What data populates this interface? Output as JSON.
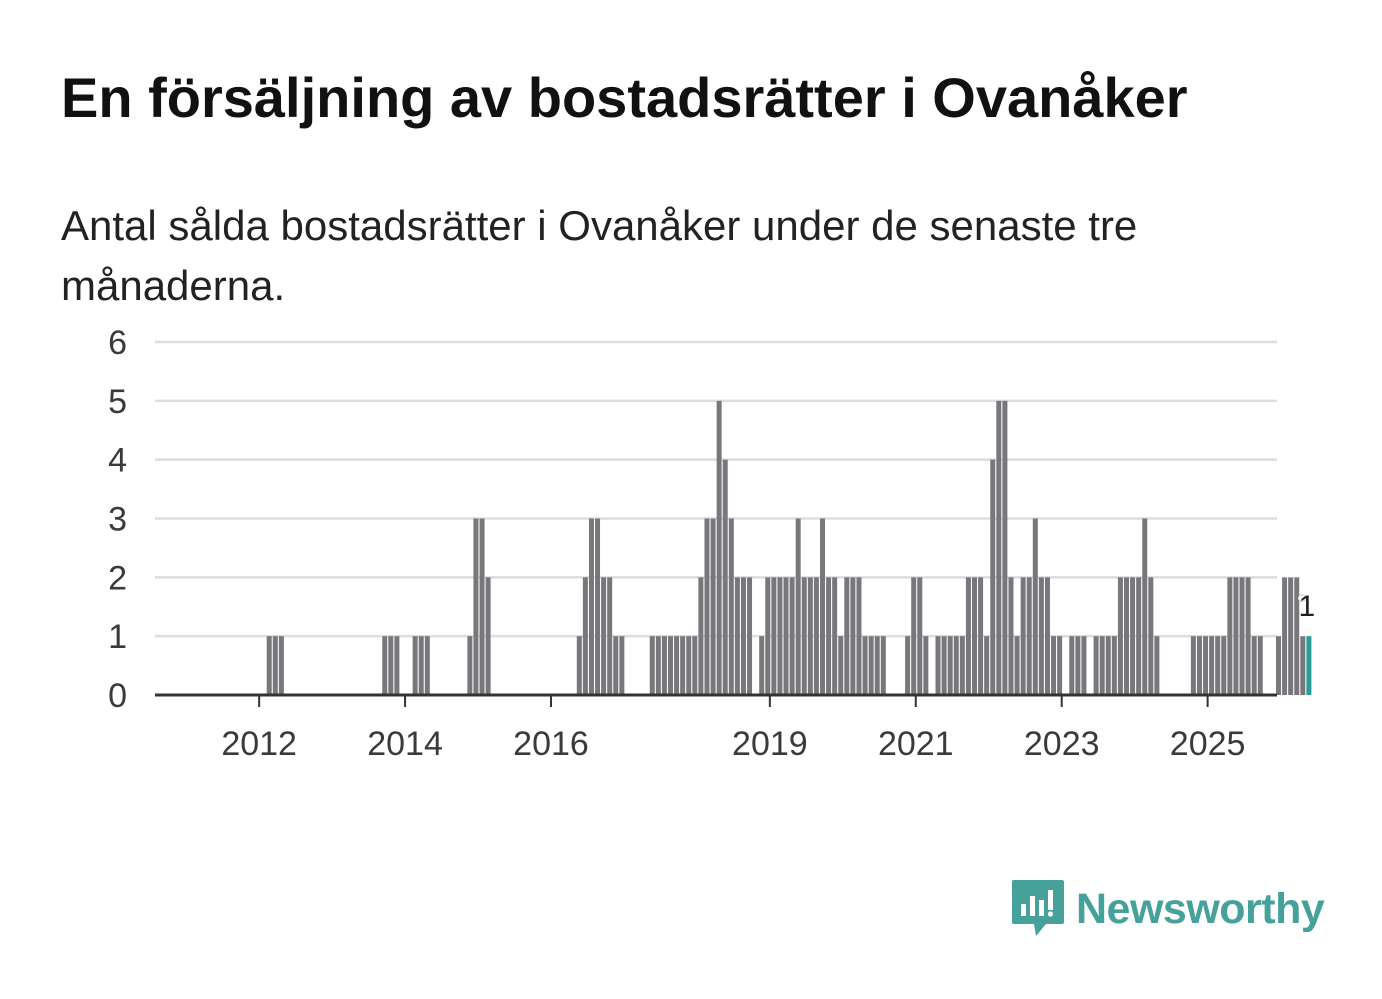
{
  "title": "En försäljning av bostadsrätter i Ovanåker",
  "subtitle": "Antal sålda bostadsrätter i Ovanåker under de senaste tre månaderna.",
  "logo_text": "Newsworthy",
  "colors": {
    "bar": "#77777c",
    "highlight": "#2a9d9a",
    "grid": "#dddddd",
    "axis": "#333333",
    "brand": "#46a19a"
  },
  "chart_data": {
    "type": "bar",
    "title": "En försäljning av bostadsrätter i Ovanåker",
    "xlabel": "",
    "ylabel": "",
    "ylim": [
      0,
      6
    ],
    "yticks": [
      "0",
      "1",
      "2",
      "3",
      "4",
      "5",
      "6"
    ],
    "xticks": [
      {
        "label": "2012",
        "month": 8
      },
      {
        "label": "2014",
        "month": 32
      },
      {
        "label": "2016",
        "month": 56
      },
      {
        "label": "2019",
        "month": 92
      },
      {
        "label": "2021",
        "month": 116
      },
      {
        "label": "2023",
        "month": 140
      },
      {
        "label": "2025",
        "month": 164
      }
    ],
    "start_month": "2011-05",
    "values": [
      0,
      0,
      0,
      0,
      0,
      0,
      0,
      0,
      0,
      1,
      1,
      1,
      0,
      0,
      0,
      0,
      0,
      0,
      0,
      0,
      0,
      0,
      0,
      0,
      0,
      0,
      0,
      0,
      1,
      1,
      1,
      0,
      0,
      1,
      1,
      1,
      0,
      0,
      0,
      0,
      0,
      0,
      1,
      3,
      3,
      2,
      0,
      0,
      0,
      0,
      0,
      0,
      0,
      0,
      0,
      0,
      0,
      0,
      0,
      0,
      1,
      2,
      3,
      3,
      2,
      2,
      1,
      1,
      0,
      0,
      0,
      0,
      1,
      1,
      1,
      1,
      1,
      1,
      1,
      1,
      2,
      3,
      3,
      5,
      4,
      3,
      2,
      2,
      2,
      0,
      1,
      2,
      2,
      2,
      2,
      2,
      3,
      2,
      2,
      2,
      3,
      2,
      2,
      1,
      2,
      2,
      2,
      1,
      1,
      1,
      1,
      0,
      0,
      0,
      1,
      2,
      2,
      1,
      0,
      1,
      1,
      1,
      1,
      1,
      2,
      2,
      2,
      1,
      4,
      5,
      5,
      2,
      1,
      2,
      2,
      3,
      2,
      2,
      1,
      1,
      0,
      1,
      1,
      1,
      0,
      1,
      1,
      1,
      1,
      2,
      2,
      2,
      2,
      3,
      2,
      1,
      0,
      0,
      0,
      0,
      0,
      1,
      1,
      1,
      1,
      1,
      1,
      2,
      2,
      2,
      2,
      1,
      1,
      0,
      0,
      1,
      2,
      2,
      2,
      1,
      1
    ],
    "highlight_label": "1",
    "highlight_index": "last"
  }
}
